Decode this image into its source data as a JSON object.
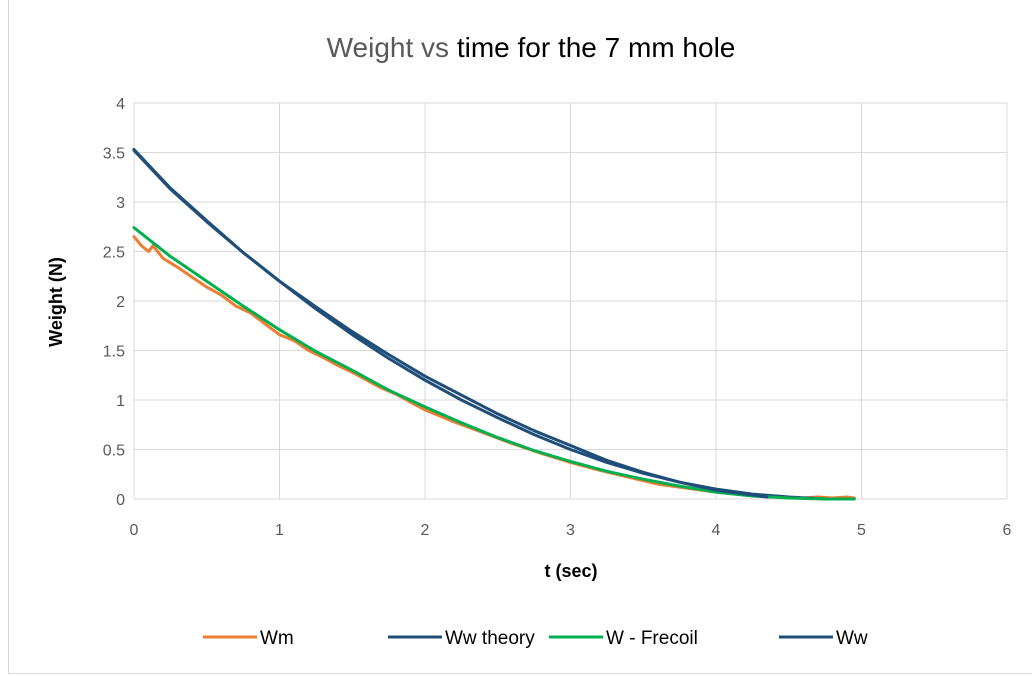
{
  "chart_data": {
    "type": "line",
    "title_parts": [
      "Weight vs ",
      "time for the 7 mm hole"
    ],
    "title": "Weight vs time for the 7 mm hole",
    "xlabel": "t (sec)",
    "ylabel": "Weight (N)",
    "xlim": [
      0,
      6
    ],
    "ylim": [
      0,
      4
    ],
    "x_ticks": [
      "0",
      "1",
      "2",
      "3",
      "4",
      "5",
      "6"
    ],
    "y_ticks": [
      "0",
      "0.5",
      "1",
      "1.5",
      "2",
      "2.5",
      "3",
      "3.5",
      "4"
    ],
    "grid": true,
    "legend_position": "bottom",
    "series": [
      {
        "name": "Wm",
        "color": "#ed7d31",
        "x": [
          0,
          0.05,
          0.1,
          0.13,
          0.2,
          0.3,
          0.4,
          0.5,
          0.6,
          0.7,
          0.8,
          0.9,
          1.0,
          1.1,
          1.2,
          1.3,
          1.4,
          1.5,
          1.6,
          1.7,
          1.8,
          1.9,
          2.0,
          2.2,
          2.4,
          2.6,
          2.8,
          3.0,
          3.2,
          3.4,
          3.6,
          3.8,
          4.0,
          4.2,
          4.4,
          4.6,
          4.7,
          4.8,
          4.9,
          4.95
        ],
        "y": [
          2.65,
          2.56,
          2.5,
          2.56,
          2.43,
          2.34,
          2.24,
          2.14,
          2.06,
          1.95,
          1.88,
          1.77,
          1.66,
          1.6,
          1.5,
          1.43,
          1.35,
          1.28,
          1.2,
          1.12,
          1.06,
          0.98,
          0.9,
          0.78,
          0.67,
          0.56,
          0.46,
          0.37,
          0.29,
          0.22,
          0.15,
          0.11,
          0.07,
          0.04,
          0.02,
          0.01,
          0.02,
          0.01,
          0.02,
          0.01
        ]
      },
      {
        "name": "Ww theory",
        "color": "#1f4e79",
        "x": [
          0,
          0.25,
          0.5,
          0.75,
          1.0,
          1.25,
          1.5,
          1.75,
          2.0,
          2.25,
          2.5,
          2.75,
          3.0,
          3.25,
          3.5,
          3.75,
          4.0,
          4.25,
          4.5,
          4.75,
          4.95
        ],
        "y": [
          3.53,
          3.14,
          2.81,
          2.49,
          2.2,
          1.92,
          1.66,
          1.42,
          1.2,
          1.0,
          0.82,
          0.65,
          0.5,
          0.37,
          0.26,
          0.17,
          0.1,
          0.05,
          0.02,
          0.0,
          0.0
        ]
      },
      {
        "name": "W - Frecoil",
        "color": "#00b050",
        "x": [
          0,
          0.25,
          0.5,
          0.75,
          1.0,
          1.25,
          1.5,
          1.75,
          2.0,
          2.25,
          2.5,
          2.75,
          3.0,
          3.25,
          3.5,
          3.75,
          4.0,
          4.25,
          4.5,
          4.75,
          4.95
        ],
        "y": [
          2.74,
          2.45,
          2.2,
          1.95,
          1.71,
          1.49,
          1.3,
          1.1,
          0.93,
          0.77,
          0.62,
          0.49,
          0.38,
          0.28,
          0.2,
          0.13,
          0.07,
          0.03,
          0.01,
          0.0,
          0.0
        ]
      },
      {
        "name": "Ww",
        "color": "#1f4e79",
        "x": [
          0,
          0.25,
          0.5,
          0.75,
          1.0,
          1.25,
          1.5,
          1.75,
          2.0,
          2.25,
          2.5,
          2.75,
          3.0,
          3.25,
          3.5,
          3.75,
          4.0,
          4.25,
          4.35
        ],
        "y": [
          3.52,
          3.13,
          2.8,
          2.49,
          2.2,
          1.94,
          1.69,
          1.46,
          1.24,
          1.05,
          0.86,
          0.69,
          0.54,
          0.39,
          0.27,
          0.17,
          0.09,
          0.04,
          0.02
        ]
      }
    ]
  }
}
